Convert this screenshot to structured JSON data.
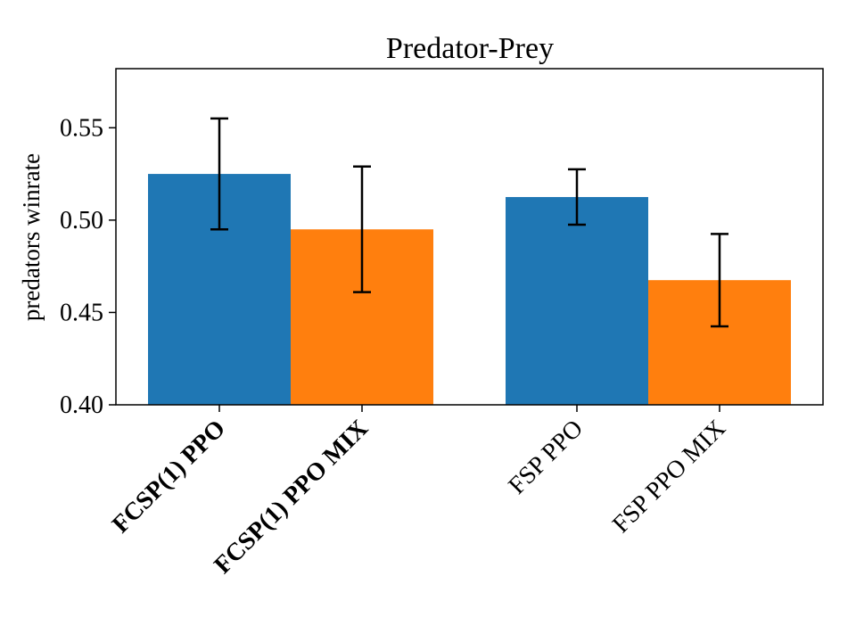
{
  "chart_data": {
    "type": "bar",
    "title": "Predator-Prey",
    "xlabel": "",
    "ylabel": "predators winrate",
    "ylim": [
      0.4,
      0.582
    ],
    "yticks": [
      0.4,
      0.45,
      0.5,
      0.55
    ],
    "ytick_labels": [
      "0.40",
      "0.45",
      "0.50",
      "0.55"
    ],
    "grid": false,
    "legend": null,
    "categories": [
      "FCSP(1) PPO",
      "FCSP(1) PPO MIX",
      "FSP PPO",
      "FSP PPO MIX"
    ],
    "category_bold": [
      true,
      true,
      false,
      false
    ],
    "values": [
      0.525,
      0.495,
      0.5125,
      0.4675
    ],
    "error_low": [
      0.495,
      0.461,
      0.4975,
      0.4425
    ],
    "error_high": [
      0.555,
      0.529,
      0.5275,
      0.4925
    ],
    "bar_colors": [
      "#1f77b4",
      "#ff7f0e",
      "#1f77b4",
      "#ff7f0e"
    ]
  }
}
